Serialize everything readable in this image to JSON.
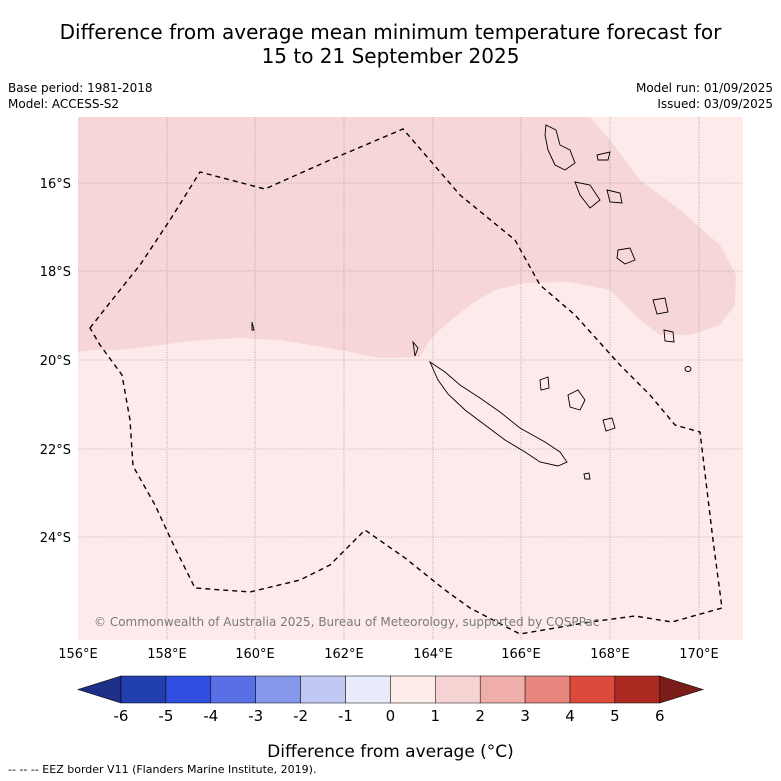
{
  "title_line1": "Difference from average mean minimum temperature forecast for",
  "title_line2": "15 to 21 September 2025",
  "meta": {
    "base_period": "Base period: 1981-2018",
    "model": "Model: ACCESS-S2",
    "model_run": "Model run: 01/09/2025",
    "issued": "Issued: 03/09/2025"
  },
  "copyright": "© Commonwealth of Australia 2025, Bureau of Meteorology, supported by COSPPac",
  "lon_labels": [
    "156°E",
    "158°E",
    "160°E",
    "162°E",
    "164°E",
    "166°E",
    "168°E",
    "170°E"
  ],
  "lat_labels": [
    "16°S",
    "18°S",
    "20°S",
    "22°S",
    "24°S"
  ],
  "colorbar": {
    "ticks": [
      "-6",
      "-5",
      "-4",
      "-3",
      "-2",
      "-1",
      "0",
      "1",
      "2",
      "3",
      "4",
      "5",
      "6"
    ],
    "colors": [
      "#1d2f86",
      "#223fb0",
      "#2f4ee0",
      "#5870e4",
      "#8497ea",
      "#c0c8f3",
      "#e8ecfb",
      "#fdecea",
      "#f6d3d3",
      "#f0aeab",
      "#e8867e",
      "#dc4a3e",
      "#ad2a23",
      "#7a1c18"
    ],
    "label": "Difference from average (°C)"
  },
  "footer": "--  --  -- EEZ border V11 (Flanders Marine Institute, 2019).",
  "map_fill_colors": {
    "light": "#fcebea",
    "medium": "#f6d6d6"
  }
}
